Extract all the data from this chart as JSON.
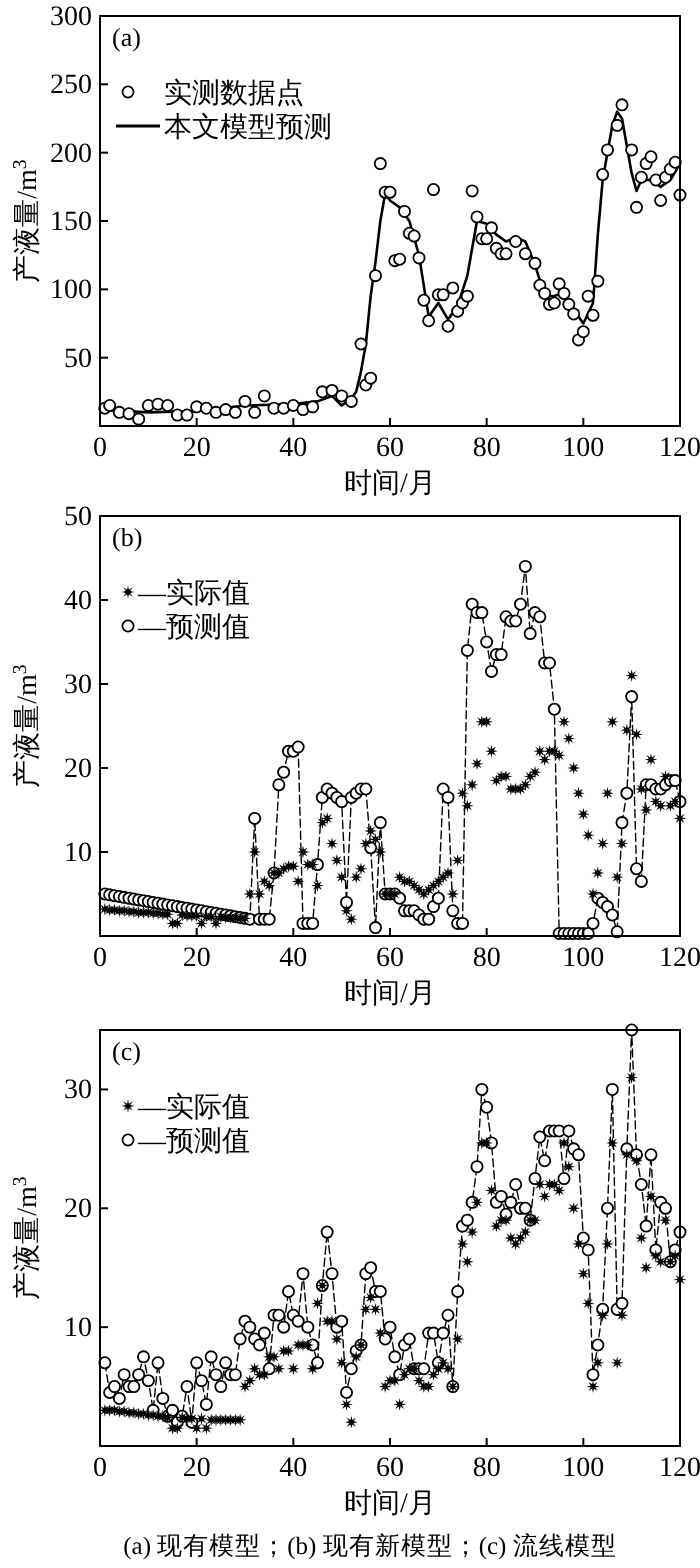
{
  "chart_data": [
    {
      "type": "line",
      "title": "(a)",
      "xlabel": "时间/月",
      "ylabel": "产液量/m$^{3}$",
      "xlim": [
        0,
        120
      ],
      "ylim": [
        0,
        300
      ],
      "xticks": [
        0,
        20,
        40,
        60,
        80,
        100,
        120
      ],
      "yticks": [
        50,
        100,
        150,
        200,
        250,
        300
      ],
      "legend": "top left",
      "series": [
        {
          "name": "实测数据点",
          "type": "scatter",
          "marker": "circle",
          "color": "#000000",
          "x": [
            1,
            2,
            4,
            6,
            8,
            10,
            12,
            14,
            16,
            18,
            20,
            22,
            24,
            26,
            28,
            30,
            32,
            34,
            36,
            38,
            40,
            42,
            44,
            46,
            48,
            50,
            52,
            54,
            55,
            56,
            57,
            58,
            59,
            60,
            61,
            62,
            63,
            64,
            65,
            66,
            67,
            68,
            69,
            70,
            71,
            72,
            73,
            74,
            75,
            76,
            77,
            78,
            79,
            80,
            81,
            82,
            83,
            84,
            86,
            88,
            90,
            91,
            92,
            93,
            94,
            95,
            96,
            97,
            98,
            99,
            100,
            101,
            102,
            103,
            104,
            105,
            107,
            108,
            110,
            111,
            112,
            113,
            114,
            115,
            116,
            117,
            118,
            119,
            120
          ],
          "values": [
            13,
            15,
            10,
            9,
            5,
            15,
            16,
            15,
            8,
            8,
            14,
            13,
            10,
            12,
            10,
            18,
            10,
            22,
            13,
            13,
            15,
            12,
            14,
            25,
            26,
            22,
            18,
            60,
            30,
            35,
            110,
            192,
            171,
            171,
            121,
            122,
            157,
            141,
            139,
            123,
            92,
            77,
            173,
            96,
            96,
            73,
            101,
            84,
            90,
            95,
            172,
            153,
            137,
            137,
            145,
            130,
            126,
            126,
            135,
            126,
            119,
            103,
            97,
            89,
            90,
            104,
            97,
            89,
            82,
            63,
            69,
            95,
            81,
            106,
            184,
            202,
            220,
            235,
            202,
            160,
            182,
            192,
            197,
            180,
            165,
            182,
            188,
            193,
            169
          ]
        },
        {
          "name": "本文模型预测",
          "marker": "none",
          "line_style": "solid",
          "color": "#000000",
          "x": [
            0,
            10,
            20,
            30,
            40,
            45,
            48,
            50,
            52,
            53,
            54,
            55,
            56,
            57,
            58,
            59,
            60,
            62,
            64,
            66,
            68,
            70,
            72,
            74,
            76,
            78,
            80,
            82,
            84,
            86,
            88,
            90,
            92,
            94,
            96,
            98,
            100,
            102,
            103,
            104,
            106,
            107,
            108,
            110,
            111,
            112,
            114,
            116,
            118,
            120
          ],
          "values": [
            12,
            10,
            11,
            15,
            16,
            18,
            22,
            15,
            20,
            25,
            40,
            60,
            95,
            120,
            150,
            170,
            165,
            160,
            150,
            125,
            80,
            90,
            78,
            88,
            110,
            150,
            148,
            140,
            135,
            138,
            135,
            118,
            95,
            95,
            98,
            85,
            75,
            90,
            140,
            180,
            220,
            230,
            225,
            185,
            172,
            180,
            180,
            175,
            180,
            192
          ]
        }
      ]
    },
    {
      "type": "line",
      "title": "(b)",
      "xlabel": "时间/月",
      "ylabel": "产液量/m$^{3}$",
      "xlim": [
        0,
        120
      ],
      "ylim": [
        0,
        50
      ],
      "xticks": [
        0,
        20,
        40,
        60,
        80,
        100,
        120
      ],
      "yticks": [
        10,
        20,
        30,
        40,
        50
      ],
      "legend": "top left",
      "x": [
        1,
        2,
        3,
        4,
        5,
        6,
        7,
        8,
        9,
        10,
        11,
        12,
        13,
        14,
        15,
        16,
        17,
        18,
        19,
        20,
        21,
        22,
        23,
        24,
        25,
        26,
        27,
        28,
        29,
        30,
        31,
        32,
        33,
        34,
        35,
        36,
        37,
        38,
        39,
        40,
        41,
        42,
        43,
        44,
        45,
        46,
        47,
        48,
        49,
        50,
        51,
        52,
        53,
        54,
        55,
        56,
        57,
        58,
        59,
        60,
        61,
        62,
        63,
        64,
        65,
        66,
        67,
        68,
        69,
        70,
        71,
        72,
        73,
        74,
        75,
        76,
        77,
        78,
        79,
        80,
        81,
        82,
        83,
        84,
        85,
        86,
        87,
        88,
        89,
        90,
        91,
        92,
        93,
        94,
        95,
        96,
        97,
        98,
        99,
        100,
        101,
        102,
        103,
        104,
        105,
        106,
        107,
        108,
        109,
        110,
        111,
        112,
        113,
        114,
        115,
        116,
        117,
        118,
        119,
        120
      ],
      "series": [
        {
          "name": "—实际值",
          "type": "scatter",
          "marker": "star",
          "color": "#000000",
          "values": [
            3.2,
            3.1,
            3.1,
            3.0,
            3.0,
            2.9,
            2.9,
            2.8,
            2.8,
            2.8,
            2.7,
            2.7,
            2.6,
            2.6,
            1.5,
            1.5,
            2.5,
            2.4,
            2.4,
            2.4,
            1.5,
            2.3,
            2.3,
            1.5,
            2.3,
            2.2,
            2.2,
            2.2,
            2.1,
            2.1,
            5,
            10,
            5,
            6.5,
            6,
            7.5,
            7.5,
            8,
            8.3,
            8.3,
            6.5,
            10,
            8.5,
            8.5,
            6,
            13.5,
            14,
            11,
            9,
            7,
            3,
            2,
            7,
            8,
            11,
            12.5,
            11.5,
            10,
            5,
            5,
            5,
            7,
            6.5,
            6.5,
            6,
            5.5,
            5,
            5.5,
            6,
            6.5,
            7,
            7.5,
            5,
            9,
            17,
            15.5,
            18,
            20.5,
            25.5,
            25.5,
            22,
            18.5,
            19,
            19,
            17.5,
            17.5,
            17.5,
            18,
            19,
            19.5,
            22,
            21,
            22,
            22,
            21.5,
            25.5,
            23.5,
            20,
            17,
            14.5,
            12,
            5,
            7.5,
            11,
            17,
            25.5,
            7,
            11,
            24.5,
            31,
            24,
            17.5,
            15,
            21,
            16,
            15.5,
            19,
            15.5,
            16,
            14
          ]
        },
        {
          "name": "—预测值",
          "marker": "circle",
          "line_style": "dashed",
          "color": "#000000",
          "values": [
            5.0,
            4.9,
            4.8,
            4.7,
            4.6,
            4.5,
            4.4,
            4.3,
            4.2,
            4.1,
            4.0,
            3.9,
            3.8,
            3.7,
            3.6,
            3.5,
            3.4,
            3.3,
            3.2,
            3.1,
            3.0,
            2.9,
            2.8,
            2.7,
            2.6,
            2.5,
            2.4,
            2.3,
            2.2,
            2.1,
            2,
            14,
            2,
            2,
            2,
            7.5,
            18,
            19.5,
            22,
            22,
            22.5,
            1.5,
            1.5,
            1.5,
            8.5,
            16.5,
            17.5,
            17,
            16.5,
            16,
            4,
            16.5,
            17,
            17.5,
            17.5,
            10.5,
            1,
            13.5,
            5,
            5,
            5,
            4.5,
            3,
            3,
            3,
            2.5,
            2,
            2,
            3.5,
            4.5,
            17.5,
            16.5,
            3,
            1.5,
            1.5,
            34,
            39.5,
            38.5,
            38.5,
            35,
            31.5,
            33.5,
            33.5,
            38,
            37.5,
            37.5,
            39.5,
            44,
            36,
            38.5,
            38,
            32.5,
            32.5,
            27,
            0.3,
            0.3,
            0.3,
            0.3,
            0.3,
            0.3,
            0.3,
            1.5,
            4.5,
            4,
            3.5,
            2.5,
            0.5,
            13.5,
            17,
            28.5,
            8,
            6.5,
            18,
            18,
            17.5,
            17.5,
            18,
            18.5,
            18.5,
            16
          ]
        }
      ]
    },
    {
      "type": "line",
      "title": "(c)",
      "xlabel": "时间/月",
      "ylabel": "产液量/m$^{3}$",
      "xlim": [
        0,
        120
      ],
      "ylim": [
        0,
        35
      ],
      "xticks": [
        0,
        20,
        40,
        60,
        80,
        100,
        120
      ],
      "yticks": [
        10,
        20,
        30
      ],
      "legend": "top left",
      "annotations": [
        "(a) 现有模型；(b) 现有新模型；(c) 流线模型"
      ],
      "x": [
        1,
        2,
        3,
        4,
        5,
        6,
        7,
        8,
        9,
        10,
        11,
        12,
        13,
        14,
        15,
        16,
        17,
        18,
        19,
        20,
        21,
        22,
        23,
        24,
        25,
        26,
        27,
        28,
        29,
        30,
        31,
        32,
        33,
        34,
        35,
        36,
        37,
        38,
        39,
        40,
        41,
        42,
        43,
        44,
        45,
        46,
        47,
        48,
        49,
        50,
        51,
        52,
        53,
        54,
        55,
        56,
        57,
        58,
        59,
        60,
        61,
        62,
        63,
        64,
        65,
        66,
        67,
        68,
        69,
        70,
        71,
        72,
        73,
        74,
        75,
        76,
        77,
        78,
        79,
        80,
        81,
        82,
        83,
        84,
        85,
        86,
        87,
        88,
        89,
        90,
        91,
        92,
        93,
        94,
        95,
        96,
        97,
        98,
        99,
        100,
        101,
        102,
        103,
        104,
        105,
        106,
        107,
        108,
        109,
        110,
        111,
        112,
        113,
        114,
        115,
        116,
        117,
        118,
        119,
        120
      ],
      "series": [
        {
          "name": "—实际值",
          "type": "scatter",
          "marker": "star",
          "color": "#000000",
          "values": [
            3,
            3,
            3,
            2.9,
            2.9,
            2.8,
            2.8,
            2.7,
            2.7,
            2.6,
            2.6,
            2.5,
            2.5,
            2.4,
            1.5,
            1.5,
            2.4,
            2.3,
            2.3,
            1.5,
            2.3,
            1.5,
            2.2,
            2.2,
            2.2,
            2.2,
            2.2,
            2.2,
            2.2,
            5,
            5.5,
            6.5,
            6,
            6,
            7.5,
            7.5,
            6.5,
            8,
            8,
            6.5,
            8.5,
            8.5,
            8.5,
            6.5,
            12,
            13.5,
            10.5,
            10.5,
            9,
            7,
            3.5,
            2,
            7.5,
            8.5,
            11.5,
            12.5,
            11.5,
            9.5,
            5,
            5.5,
            5.5,
            3.5,
            6,
            6.5,
            6.5,
            5.5,
            5,
            5,
            6,
            6.5,
            7,
            6.5,
            5,
            9,
            17,
            15.5,
            18,
            20.5,
            25.5,
            25.5,
            21.5,
            18.5,
            19,
            19,
            17.5,
            17,
            17.5,
            18,
            19,
            19,
            22,
            21,
            22,
            22,
            21.5,
            25.5,
            23.5,
            20,
            17,
            14.5,
            12,
            5,
            7,
            11,
            17,
            25.5,
            7,
            11,
            24.5,
            31,
            24,
            17.5,
            15,
            21,
            16,
            15.5,
            19,
            15.5,
            16,
            14
          ]
        },
        {
          "name": "—预测值",
          "marker": "circle",
          "line_style": "dashed",
          "color": "#000000",
          "values": [
            7,
            4.5,
            5,
            4,
            6,
            5,
            5,
            6,
            7.5,
            5.5,
            3,
            7,
            4,
            2.5,
            3,
            2,
            2.5,
            5,
            2,
            7,
            5.5,
            3.5,
            7.5,
            6,
            5,
            7,
            6,
            6,
            9,
            10.5,
            10,
            9,
            8.5,
            9.5,
            6.5,
            11,
            11,
            10,
            13,
            11,
            10.5,
            14.5,
            10,
            8.5,
            7,
            13.5,
            18,
            14.5,
            10,
            10.5,
            4.5,
            6.5,
            8,
            8.5,
            14.5,
            15,
            13,
            13,
            9,
            10,
            7.5,
            6,
            8.5,
            9,
            6.5,
            6.5,
            6.5,
            9.5,
            9.5,
            7,
            9.5,
            11,
            5,
            13,
            18.5,
            19,
            20.5,
            23.5,
            30,
            28.5,
            25.5,
            20.5,
            21,
            19.5,
            20.5,
            22,
            20,
            20,
            19,
            22.5,
            26,
            24,
            26.5,
            26.5,
            26.5,
            22.5,
            26.5,
            25,
            24.5,
            17.5,
            16.5,
            6,
            8.5,
            11.5,
            20,
            30,
            11.5,
            12,
            25,
            35,
            24.5,
            22,
            18.5,
            24.5,
            16.5,
            20.5,
            20,
            15.5,
            16.5,
            18
          ]
        }
      ]
    }
  ]
}
